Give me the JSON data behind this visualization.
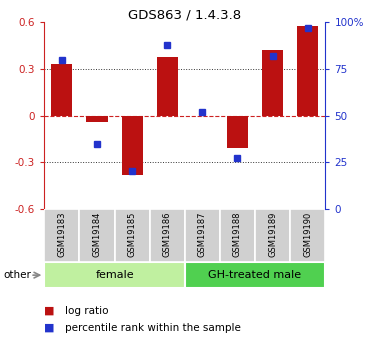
{
  "title": "GDS863 / 1.4.3.8",
  "samples": [
    "GSM19183",
    "GSM19184",
    "GSM19185",
    "GSM19186",
    "GSM19187",
    "GSM19188",
    "GSM19189",
    "GSM19190"
  ],
  "log_ratios": [
    0.33,
    -0.04,
    -0.38,
    0.38,
    0.0,
    -0.21,
    0.42,
    0.58
  ],
  "percentile_ranks": [
    80,
    35,
    20,
    88,
    52,
    27,
    82,
    97
  ],
  "groups": [
    {
      "label": "female",
      "start": 0,
      "end": 4,
      "color": "#c0f0a0"
    },
    {
      "label": "GH-treated male",
      "start": 4,
      "end": 8,
      "color": "#50d050"
    }
  ],
  "ylim": [
    -0.6,
    0.6
  ],
  "yticks": [
    -0.6,
    -0.3,
    0.0,
    0.3,
    0.6
  ],
  "ytick_labels": [
    "-0.6",
    "-0.3",
    "0",
    "0.3",
    "0.6"
  ],
  "right_yticks_pct": [
    0,
    25,
    50,
    75,
    100
  ],
  "right_ylabels": [
    "0",
    "25",
    "50",
    "75",
    "100%"
  ],
  "bar_color": "#bb1111",
  "dot_color": "#2233cc",
  "bg_color": "#ffffff",
  "grid_color": "#333333",
  "zero_line_color": "#cc2222",
  "label_bg": "#c8c8c8",
  "label_sep": "#ffffff",
  "other_label": "other",
  "legend_logratio": "log ratio",
  "legend_percentile": "percentile rank within the sample",
  "bar_width": 0.6
}
